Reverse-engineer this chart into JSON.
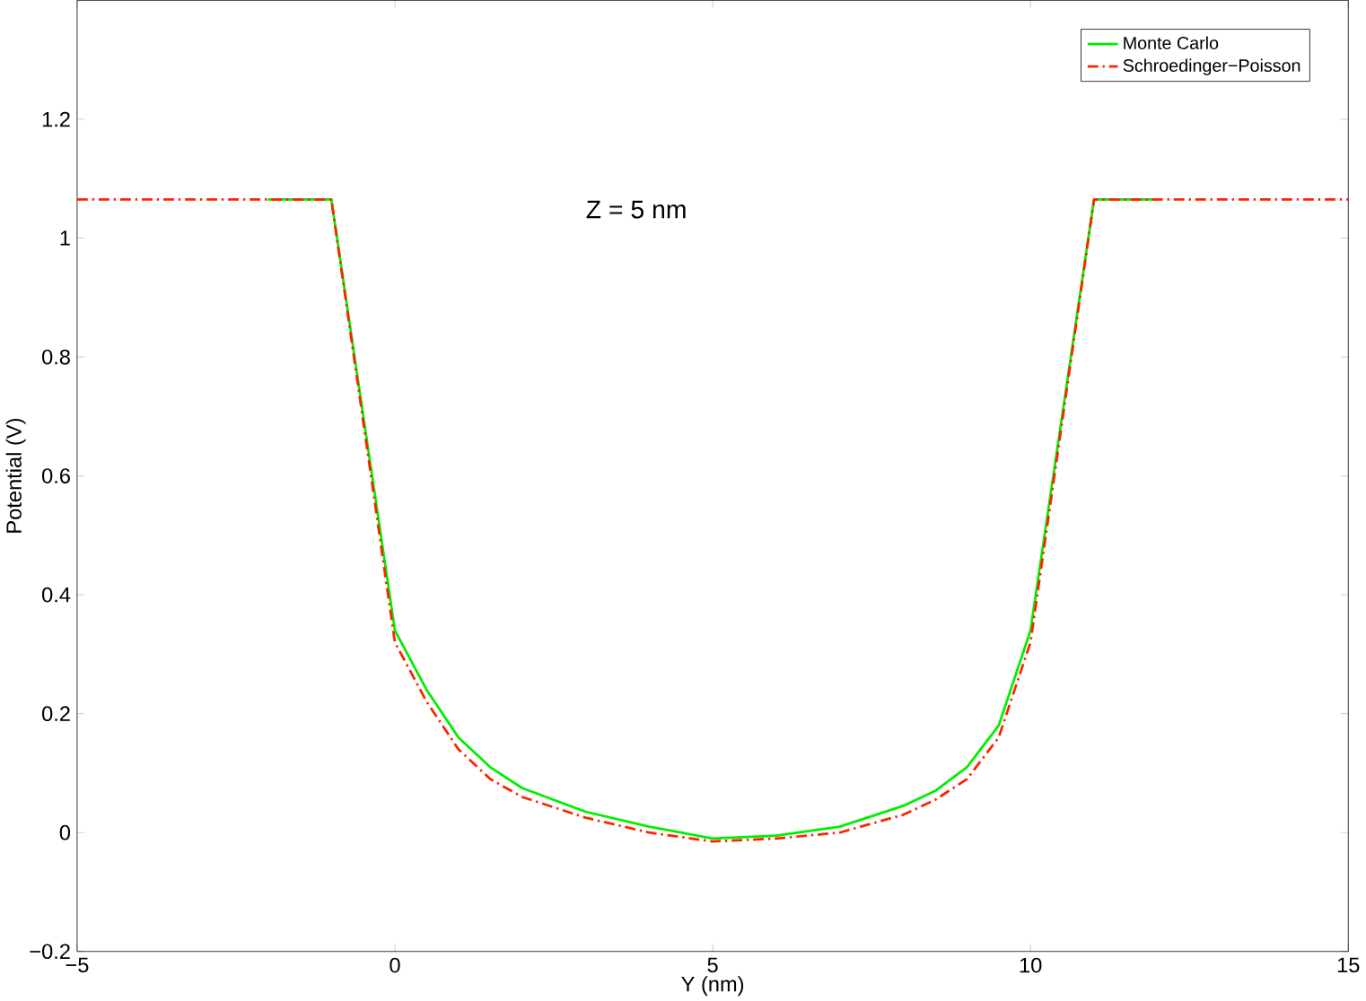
{
  "chart_data": {
    "type": "line",
    "xlabel": "Y (nm)",
    "ylabel": "Potential (V)",
    "annotations": [
      "Z = 5 nm"
    ],
    "xlim": [
      -5,
      15
    ],
    "xticks": [
      {
        "value": -5,
        "label": "−5"
      },
      0,
      5,
      10,
      15
    ],
    "ylim": [
      -0.2,
      1.4
    ],
    "yticks": [
      {
        "value": -0.2,
        "label": "−0.2"
      },
      0,
      0.2,
      0.4,
      0.6,
      0.8,
      1,
      1.2
    ],
    "grid": false,
    "legend": "top right",
    "series": [
      {
        "name": "Monte Carlo",
        "color": "#00ee00",
        "line_style": "solid",
        "x": [
          -2,
          -1,
          0,
          0.5,
          1,
          1.5,
          2,
          3,
          4,
          5,
          6,
          7,
          8,
          8.5,
          9,
          9.5,
          10,
          11,
          12
        ],
        "values": [
          1.065,
          1.065,
          0.34,
          0.24,
          0.16,
          0.11,
          0.075,
          0.035,
          0.01,
          -0.01,
          -0.005,
          0.01,
          0.045,
          0.07,
          0.11,
          0.18,
          0.34,
          1.065,
          1.065
        ]
      },
      {
        "name": "Schroedinger−Poisson",
        "color": "#ff2200",
        "line_style": "dashdot",
        "x": [
          -5,
          -1,
          0,
          0.5,
          1,
          1.5,
          2,
          3,
          4,
          5,
          6,
          7,
          8,
          8.5,
          9,
          9.5,
          10,
          11,
          15
        ],
        "values": [
          1.065,
          1.065,
          0.32,
          0.22,
          0.14,
          0.09,
          0.06,
          0.025,
          0.0,
          -0.015,
          -0.01,
          0.0,
          0.03,
          0.055,
          0.09,
          0.16,
          0.32,
          1.065,
          1.065
        ]
      }
    ]
  }
}
